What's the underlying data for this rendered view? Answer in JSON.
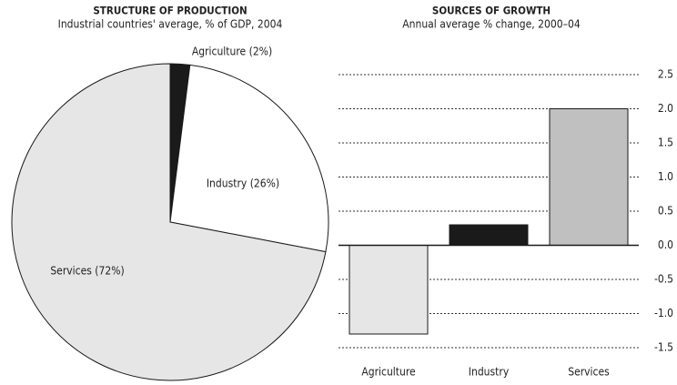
{
  "chart_data": [
    {
      "type": "pie",
      "title": "STRUCTURE OF PRODUCTION",
      "subtitle": "Industrial countries' average, % of GDP, 2004",
      "categories": [
        "Agriculture",
        "Industry",
        "Services"
      ],
      "values": [
        2,
        26,
        72
      ],
      "value_labels": [
        "Agriculture (2%)",
        "Industry (26%)",
        "Services (72%)"
      ],
      "colors": [
        "#1a1a1a",
        "#ffffff",
        "#e6e6e6"
      ]
    },
    {
      "type": "bar",
      "title": "SOURCES OF GROWTH",
      "subtitle": "Annual average % change, 2000–04",
      "categories": [
        "Agriculture",
        "Industry",
        "Services"
      ],
      "values": [
        -1.3,
        0.3,
        2.0
      ],
      "colors": [
        "#e6e6e6",
        "#1a1a1a",
        "#c0c0c0"
      ],
      "ylim": [
        -1.5,
        2.5
      ],
      "yticks": [
        -1.5,
        {
          "value": -1,
          "label": "-1.0"
        },
        -0.5,
        {
          "value": 0,
          "label": "0.0"
        },
        0.5,
        {
          "value": 1,
          "label": "1.0"
        },
        1.5,
        {
          "value": 2,
          "label": "2.0"
        },
        2.5
      ],
      "grid": true
    }
  ]
}
